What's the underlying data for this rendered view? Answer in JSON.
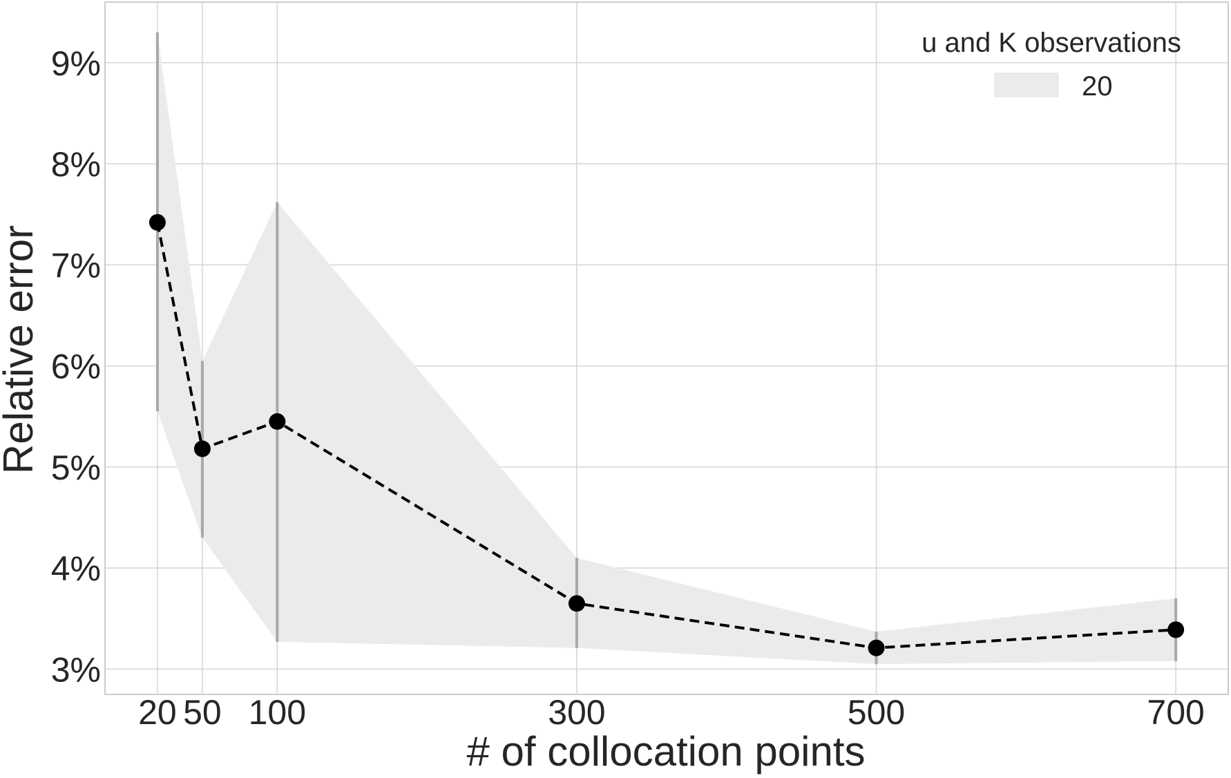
{
  "chart_data": {
    "type": "line",
    "title": "",
    "xlabel": "# of collocation points",
    "ylabel": "Relative error",
    "x": [
      20,
      50,
      100,
      300,
      500,
      700
    ],
    "x_tick_labels": [
      "20",
      "50",
      "100",
      "300",
      "500",
      "700"
    ],
    "y_ticks": [
      3,
      4,
      5,
      6,
      7,
      8,
      9
    ],
    "y_tick_labels": [
      "3%",
      "4%",
      "5%",
      "6%",
      "7%",
      "8%",
      "9%"
    ],
    "xlim": [
      -15,
      735
    ],
    "ylim": [
      2.75,
      9.6
    ],
    "y_unit": "percent",
    "grid": true,
    "legend": {
      "title": "u and K observations",
      "placement": "top-right",
      "entries": [
        "20"
      ]
    },
    "series": [
      {
        "name": "20",
        "values": [
          7.42,
          5.18,
          5.45,
          3.65,
          3.21,
          3.39
        ],
        "band_upper": [
          9.3,
          6.05,
          7.62,
          4.1,
          3.37,
          3.7
        ],
        "band_lower": [
          5.55,
          4.3,
          3.27,
          3.21,
          3.05,
          3.08
        ],
        "line_style": "dashed",
        "marker": "circle",
        "color": "#000000",
        "band_color": "#ebebeb",
        "errorbar_color": "#a8a8a8"
      }
    ],
    "colors": {
      "grid": "#d4d4d4",
      "axes_border": "#cccccc",
      "text": "#262626"
    }
  }
}
